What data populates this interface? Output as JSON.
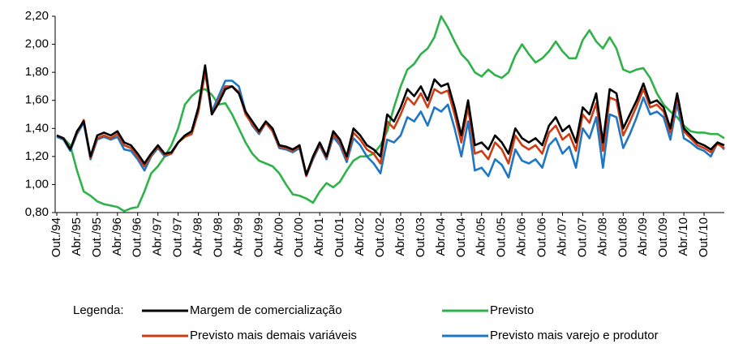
{
  "chart_data": {
    "type": "line",
    "categories": [
      "Out./94",
      null,
      null,
      "Abr./95",
      null,
      null,
      "Out./95",
      null,
      null,
      "Abr./96",
      null,
      null,
      "Out./96",
      null,
      null,
      "Abr./97",
      null,
      null,
      "Out./97",
      null,
      null,
      "Abr./98",
      null,
      null,
      "Out./98",
      null,
      null,
      "Abr./99",
      null,
      null,
      "Out./99",
      null,
      null,
      "Abr./00",
      null,
      null,
      "Out./00",
      null,
      null,
      "Abr./01",
      null,
      null,
      "Out./01",
      null,
      null,
      "Abr./02",
      null,
      null,
      "Out./02",
      null,
      null,
      "Abr./03",
      null,
      null,
      "Out./03",
      null,
      null,
      "Abr./04",
      null,
      null,
      "Out./04",
      null,
      null,
      "Abr./05",
      null,
      null,
      "Out./05",
      null,
      null,
      "Abr./06",
      null,
      null,
      "Out./06",
      null,
      null,
      "Abr./07",
      null,
      null,
      "Out./07",
      null,
      null,
      "Abr./08",
      null,
      null,
      "Out./08",
      null,
      null,
      "Abr./09",
      null,
      null,
      "Out./09",
      null,
      null,
      "Abr./10",
      null,
      null,
      "Out./10",
      null,
      null,
      null
    ],
    "series": [
      {
        "name": "Previsto",
        "color": "#2fb24a",
        "values": [
          1.35,
          1.33,
          1.28,
          1.1,
          0.95,
          0.92,
          0.88,
          0.86,
          0.85,
          0.84,
          0.81,
          0.83,
          0.84,
          0.95,
          1.08,
          1.13,
          1.2,
          1.28,
          1.4,
          1.57,
          1.63,
          1.67,
          1.68,
          1.64,
          1.57,
          1.58,
          1.5,
          1.4,
          1.3,
          1.22,
          1.17,
          1.15,
          1.13,
          1.08,
          1.0,
          0.93,
          0.92,
          0.9,
          0.87,
          0.95,
          1.01,
          0.98,
          1.02,
          1.1,
          1.17,
          1.2,
          1.2,
          1.22,
          1.28,
          1.38,
          1.55,
          1.7,
          1.82,
          1.86,
          1.93,
          1.97,
          2.05,
          2.2,
          2.12,
          2.02,
          1.93,
          1.88,
          1.8,
          1.77,
          1.82,
          1.78,
          1.76,
          1.8,
          1.92,
          2.0,
          1.93,
          1.87,
          1.9,
          1.95,
          2.02,
          1.95,
          1.9,
          1.9,
          2.03,
          2.1,
          2.02,
          1.97,
          2.05,
          1.97,
          1.82,
          1.8,
          1.82,
          1.83,
          1.76,
          1.65,
          1.57,
          1.52,
          1.48,
          1.42,
          1.38,
          1.37,
          1.37,
          1.36,
          1.36,
          1.33
        ]
      },
      {
        "name": "Previsto mais varejo e produtor",
        "color": "#1f77c4",
        "values": [
          1.34,
          1.32,
          1.24,
          1.36,
          1.44,
          1.18,
          1.32,
          1.34,
          1.32,
          1.34,
          1.25,
          1.24,
          1.18,
          1.1,
          1.2,
          1.26,
          1.2,
          1.22,
          1.3,
          1.34,
          1.36,
          1.52,
          1.82,
          1.52,
          1.63,
          1.74,
          1.74,
          1.7,
          1.52,
          1.42,
          1.36,
          1.44,
          1.38,
          1.26,
          1.25,
          1.23,
          1.26,
          1.06,
          1.18,
          1.28,
          1.18,
          1.34,
          1.28,
          1.16,
          1.33,
          1.28,
          1.2,
          1.15,
          1.08,
          1.32,
          1.3,
          1.35,
          1.48,
          1.45,
          1.52,
          1.42,
          1.55,
          1.52,
          1.57,
          1.4,
          1.2,
          1.45,
          1.1,
          1.12,
          1.06,
          1.18,
          1.14,
          1.05,
          1.25,
          1.17,
          1.15,
          1.18,
          1.12,
          1.28,
          1.33,
          1.22,
          1.27,
          1.12,
          1.4,
          1.33,
          1.48,
          1.12,
          1.5,
          1.48,
          1.26,
          1.36,
          1.48,
          1.62,
          1.5,
          1.52,
          1.48,
          1.32,
          1.58,
          1.33,
          1.3,
          1.26,
          1.24,
          1.2,
          1.3,
          1.25
        ]
      },
      {
        "name": "Previsto mais demais variáveis",
        "color": "#cc3d14",
        "values": [
          1.35,
          1.33,
          1.25,
          1.37,
          1.46,
          1.19,
          1.33,
          1.35,
          1.33,
          1.36,
          1.28,
          1.26,
          1.2,
          1.13,
          1.21,
          1.27,
          1.21,
          1.22,
          1.3,
          1.34,
          1.36,
          1.52,
          1.8,
          1.5,
          1.6,
          1.7,
          1.7,
          1.66,
          1.5,
          1.43,
          1.37,
          1.44,
          1.38,
          1.27,
          1.26,
          1.24,
          1.27,
          1.06,
          1.19,
          1.29,
          1.19,
          1.36,
          1.3,
          1.18,
          1.37,
          1.32,
          1.25,
          1.22,
          1.15,
          1.45,
          1.4,
          1.5,
          1.62,
          1.57,
          1.65,
          1.55,
          1.68,
          1.65,
          1.67,
          1.5,
          1.3,
          1.55,
          1.22,
          1.24,
          1.18,
          1.3,
          1.25,
          1.15,
          1.35,
          1.28,
          1.25,
          1.28,
          1.22,
          1.37,
          1.42,
          1.32,
          1.36,
          1.24,
          1.5,
          1.44,
          1.58,
          1.24,
          1.62,
          1.6,
          1.35,
          1.45,
          1.56,
          1.68,
          1.55,
          1.57,
          1.52,
          1.37,
          1.62,
          1.38,
          1.33,
          1.28,
          1.26,
          1.23,
          1.29,
          1.26
        ]
      },
      {
        "name": "Margem de comercialização",
        "color": "#000000",
        "values": [
          1.35,
          1.33,
          1.25,
          1.38,
          1.45,
          1.2,
          1.35,
          1.37,
          1.35,
          1.38,
          1.3,
          1.28,
          1.22,
          1.15,
          1.22,
          1.28,
          1.22,
          1.23,
          1.3,
          1.35,
          1.38,
          1.55,
          1.85,
          1.5,
          1.58,
          1.68,
          1.7,
          1.65,
          1.52,
          1.45,
          1.38,
          1.45,
          1.4,
          1.28,
          1.27,
          1.25,
          1.28,
          1.07,
          1.2,
          1.3,
          1.2,
          1.38,
          1.32,
          1.2,
          1.4,
          1.35,
          1.28,
          1.25,
          1.2,
          1.5,
          1.45,
          1.55,
          1.68,
          1.63,
          1.7,
          1.6,
          1.75,
          1.7,
          1.72,
          1.55,
          1.35,
          1.6,
          1.28,
          1.3,
          1.25,
          1.35,
          1.3,
          1.22,
          1.4,
          1.33,
          1.3,
          1.33,
          1.28,
          1.42,
          1.48,
          1.38,
          1.42,
          1.3,
          1.55,
          1.5,
          1.65,
          1.3,
          1.68,
          1.65,
          1.4,
          1.5,
          1.6,
          1.72,
          1.58,
          1.6,
          1.55,
          1.4,
          1.65,
          1.4,
          1.35,
          1.3,
          1.28,
          1.25,
          1.3,
          1.28
        ]
      }
    ],
    "ylim": [
      0.8,
      2.2
    ],
    "yticks": [
      {
        "value": 0.8,
        "label": "0,80"
      },
      {
        "value": 1.0,
        "label": "1,00"
      },
      {
        "value": 1.2,
        "label": "1,20"
      },
      {
        "value": 1.4,
        "label": "1,40"
      },
      {
        "value": 1.6,
        "label": "1,60"
      },
      {
        "value": 1.8,
        "label": "1,80"
      },
      {
        "value": 2.0,
        "label": "2,00"
      },
      {
        "value": 2.2,
        "label": "2,20"
      }
    ],
    "legend_title": "Legenda:"
  }
}
